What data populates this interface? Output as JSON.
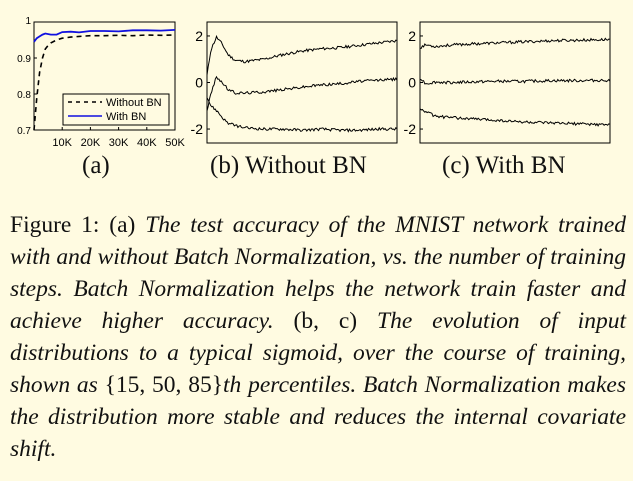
{
  "figure": {
    "panels": {
      "a": "(a)",
      "b": "(b) Without BN",
      "c": "(c) With BN"
    },
    "caption": {
      "label": "Figure 1:",
      "part_a_marker": "(a)",
      "part_a_text": "The test accuracy of the MNIST network trained with and without Batch Normalization, vs. the number of training steps. Batch Normalization helps the network train faster and achieve higher accuracy.",
      "part_bc_marker": "(b, c)",
      "part_bc_text_1": "The evolution of input distributions to a typical sigmoid, over the course of training, shown as",
      "percentiles": "{15, 50, 85}",
      "part_bc_text_2": "th percentiles. Batch Normalization makes the distribution more stable and reduces the internal covariate shift."
    }
  },
  "chart_data": [
    {
      "type": "line",
      "panel": "a",
      "xlim": [
        0,
        50000
      ],
      "ylim": [
        0.7,
        1.0
      ],
      "x_ticks": [
        "10K",
        "20K",
        "30K",
        "40K",
        "50K"
      ],
      "y_ticks": [
        "0.7",
        "0.8",
        "0.9",
        "1"
      ],
      "legend_position": "bottom-right",
      "grid": false,
      "series": [
        {
          "name": "Without BN",
          "color": "#000000",
          "style": "dashed",
          "x": [
            0,
            1000,
            2000,
            3000,
            4000,
            5000,
            6000,
            8000,
            10000,
            13000,
            16000,
            20000,
            25000,
            30000,
            35000,
            40000,
            45000,
            50000
          ],
          "y": [
            0.7,
            0.79,
            0.86,
            0.9,
            0.925,
            0.935,
            0.942,
            0.95,
            0.955,
            0.958,
            0.96,
            0.962,
            0.962,
            0.963,
            0.962,
            0.964,
            0.963,
            0.964
          ]
        },
        {
          "name": "With BN",
          "color": "#1010e0",
          "style": "solid",
          "x": [
            0,
            1000,
            2000,
            3000,
            4000,
            6000,
            8000,
            10000,
            13000,
            16000,
            20000,
            25000,
            30000,
            35000,
            40000,
            45000,
            50000
          ],
          "y": [
            0.945,
            0.955,
            0.96,
            0.965,
            0.968,
            0.965,
            0.965,
            0.972,
            0.973,
            0.971,
            0.975,
            0.975,
            0.974,
            0.977,
            0.977,
            0.976,
            0.978
          ]
        }
      ]
    },
    {
      "type": "line",
      "panel": "b",
      "ylim": [
        -2.6,
        2.6
      ],
      "y_ticks": [
        "2",
        "0",
        "-2"
      ],
      "grid": false,
      "series": [
        {
          "color": "#000000",
          "x": [
            0,
            0.02,
            0.05,
            0.08,
            0.11,
            0.15,
            0.2,
            0.3,
            0.4,
            0.5,
            0.6,
            0.7,
            0.8,
            0.9,
            1.0
          ],
          "y": [
            0.3,
            1.4,
            1.95,
            1.65,
            1.2,
            0.95,
            0.9,
            1.0,
            1.2,
            1.35,
            1.45,
            1.5,
            1.6,
            1.7,
            1.8
          ]
        },
        {
          "color": "#000000",
          "x": [
            0,
            0.02,
            0.05,
            0.08,
            0.11,
            0.15,
            0.2,
            0.3,
            0.4,
            0.5,
            0.6,
            0.7,
            0.8,
            0.9,
            1.0
          ],
          "y": [
            -1.2,
            -0.5,
            0.25,
            0.0,
            -0.3,
            -0.45,
            -0.45,
            -0.4,
            -0.3,
            -0.2,
            -0.1,
            -0.05,
            0.05,
            0.1,
            0.15
          ]
        },
        {
          "color": "#000000",
          "x": [
            0,
            0.02,
            0.05,
            0.08,
            0.11,
            0.15,
            0.2,
            0.3,
            0.4,
            0.5,
            0.6,
            0.7,
            0.8,
            0.9,
            1.0
          ],
          "y": [
            -0.6,
            -1.0,
            -1.2,
            -1.5,
            -1.75,
            -1.85,
            -1.95,
            -2.0,
            -2.0,
            -2.05,
            -2.0,
            -2.05,
            -2.05,
            -2.0,
            -2.0
          ]
        }
      ]
    },
    {
      "type": "line",
      "panel": "c",
      "ylim": [
        -2.6,
        2.6
      ],
      "y_ticks": [
        "2",
        "0",
        "-2"
      ],
      "grid": false,
      "series": [
        {
          "color": "#000000",
          "x": [
            0,
            0.03,
            0.08,
            0.15,
            0.25,
            0.4,
            0.55,
            0.7,
            0.85,
            1.0
          ],
          "y": [
            1.5,
            1.62,
            1.55,
            1.6,
            1.65,
            1.7,
            1.75,
            1.8,
            1.82,
            1.85
          ]
        },
        {
          "color": "#000000",
          "x": [
            0,
            0.03,
            0.08,
            0.15,
            0.25,
            0.4,
            0.55,
            0.7,
            0.85,
            1.0
          ],
          "y": [
            0.2,
            -0.05,
            0.02,
            0.0,
            0.02,
            0.05,
            0.05,
            0.08,
            0.08,
            0.1
          ]
        },
        {
          "color": "#000000",
          "x": [
            0,
            0.03,
            0.08,
            0.15,
            0.25,
            0.4,
            0.55,
            0.7,
            0.85,
            1.0
          ],
          "y": [
            -1.15,
            -1.25,
            -1.45,
            -1.5,
            -1.55,
            -1.62,
            -1.7,
            -1.75,
            -1.78,
            -1.82
          ]
        }
      ]
    }
  ]
}
